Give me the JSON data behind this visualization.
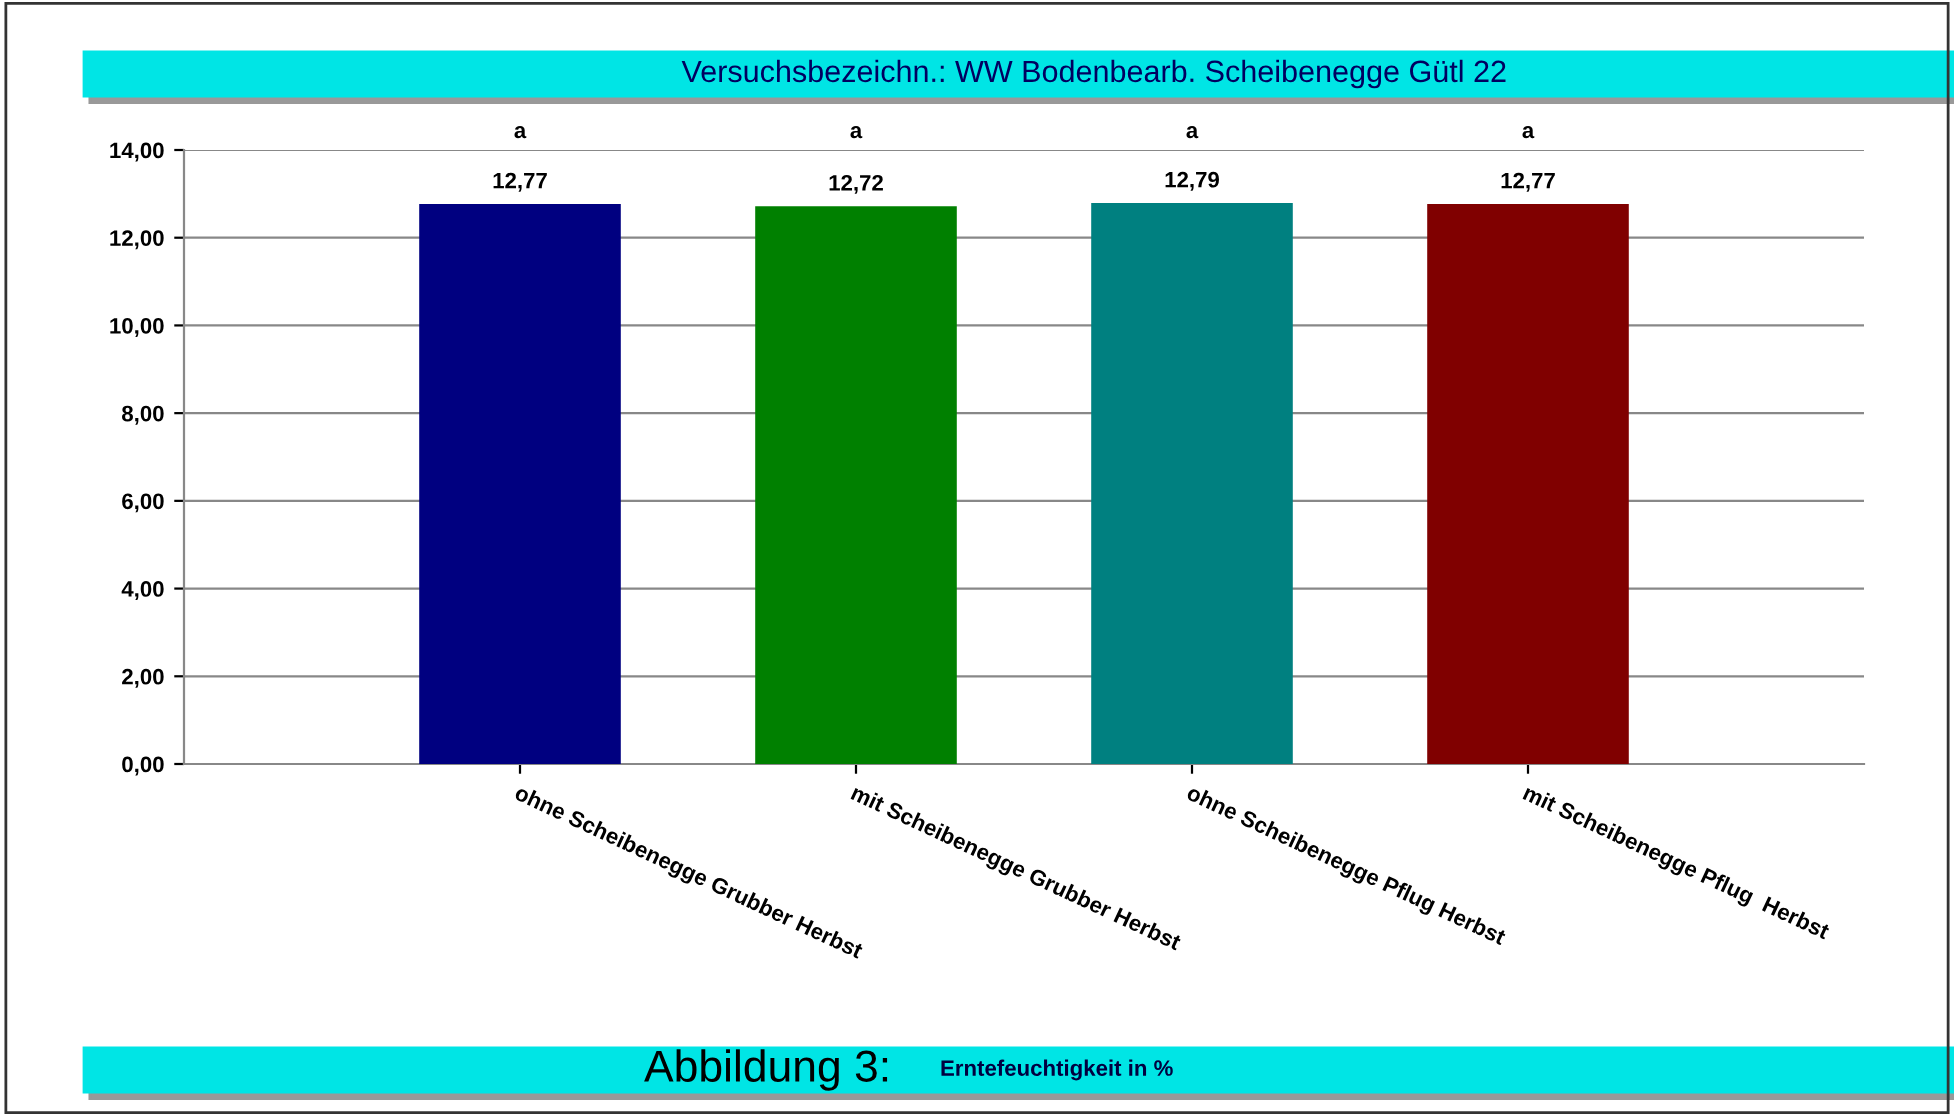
{
  "chart_data": {
    "type": "bar",
    "title": "Versuchsbezeichn.: WW Bodenbearb. Scheibenegge Gütl 22",
    "categories": [
      "ohne Scheibenegge Grubber Herbst",
      "mit Scheibenegge Grubber Herbst",
      "ohne Scheibenegge Pflug Herbst",
      "mit Scheibenegge Pflug  Herbst"
    ],
    "values": [
      12.77,
      12.72,
      12.79,
      12.77
    ],
    "colors": [
      "#000080",
      "#008000",
      "#008080",
      "#800000"
    ],
    "value_labels": [
      "12,77",
      "12,72",
      "12,79",
      "12,77"
    ],
    "ylim": [
      0,
      14
    ],
    "yticks": [
      {
        "value": 0,
        "label": "0,00"
      },
      {
        "value": 2,
        "label": "2,00"
      },
      {
        "value": 4,
        "label": "4,00"
      },
      {
        "value": 6,
        "label": "6,00"
      },
      {
        "value": 8,
        "label": "8,00"
      },
      {
        "value": 10,
        "label": "10,00"
      },
      {
        "value": 12,
        "label": "12,00"
      },
      {
        "value": 14,
        "label": "14,00"
      }
    ],
    "grid": "y",
    "annotations": [
      "a",
      "a",
      "a",
      "a",
      "Abbildung 3:",
      "Erntefeuchtigkeit in %"
    ]
  }
}
